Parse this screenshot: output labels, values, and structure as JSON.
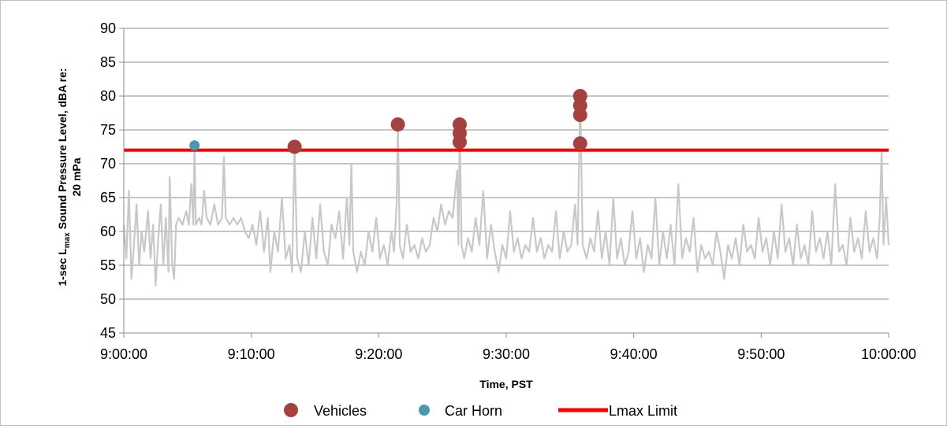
{
  "chart_data": {
    "type": "line",
    "title": "",
    "xlabel": "Time, PST",
    "ylabel_parts": {
      "prefix": "1-sec L",
      "subscript": "max",
      "suffix": " Sound Pressure Level, dBA re:",
      "line2": "20 mPa"
    },
    "x_unit": "minutes after 9:00:00",
    "xlim": [
      0,
      60
    ],
    "ylim": [
      45,
      90
    ],
    "yticks": [
      45,
      50,
      55,
      60,
      65,
      70,
      75,
      80,
      85,
      90
    ],
    "xticks": [
      0,
      10,
      20,
      30,
      40,
      50,
      60
    ],
    "xtick_labels": [
      "9:00:00",
      "9:10:00",
      "9:20:00",
      "9:30:00",
      "9:40:00",
      "9:50:00",
      "10:00:00"
    ],
    "grid": true,
    "legend_position": "bottom",
    "series": [
      {
        "name": "",
        "kind": "line",
        "color": "#c8c8c8",
        "keypoints": [
          [
            0.0,
            61
          ],
          [
            0.2,
            56
          ],
          [
            0.4,
            66
          ],
          [
            0.6,
            53
          ],
          [
            0.8,
            58
          ],
          [
            1.0,
            64
          ],
          [
            1.2,
            55
          ],
          [
            1.4,
            60
          ],
          [
            1.6,
            57
          ],
          [
            1.9,
            63
          ],
          [
            2.1,
            56
          ],
          [
            2.3,
            61
          ],
          [
            2.5,
            52
          ],
          [
            2.7,
            59
          ],
          [
            2.9,
            64
          ],
          [
            3.1,
            55
          ],
          [
            3.3,
            62
          ],
          [
            3.5,
            54
          ],
          [
            3.6,
            68
          ],
          [
            3.8,
            55
          ],
          [
            3.95,
            53
          ],
          [
            4.1,
            61
          ],
          [
            4.3,
            62
          ],
          [
            4.6,
            61
          ],
          [
            4.9,
            63
          ],
          [
            5.1,
            61
          ],
          [
            5.3,
            67
          ],
          [
            5.45,
            61
          ],
          [
            5.55,
            73
          ],
          [
            5.65,
            61
          ],
          [
            5.9,
            62
          ],
          [
            6.1,
            61
          ],
          [
            6.3,
            66
          ],
          [
            6.5,
            62
          ],
          [
            6.8,
            61
          ],
          [
            7.1,
            64
          ],
          [
            7.4,
            61
          ],
          [
            7.7,
            62
          ],
          [
            7.85,
            71
          ],
          [
            8.0,
            62
          ],
          [
            8.3,
            61
          ],
          [
            8.6,
            62
          ],
          [
            8.9,
            61
          ],
          [
            9.2,
            62
          ],
          [
            9.5,
            60
          ],
          [
            9.8,
            59
          ],
          [
            10.1,
            61
          ],
          [
            10.4,
            58
          ],
          [
            10.7,
            63
          ],
          [
            11.0,
            57
          ],
          [
            11.3,
            62
          ],
          [
            11.5,
            54
          ],
          [
            11.8,
            60
          ],
          [
            12.1,
            57
          ],
          [
            12.4,
            65
          ],
          [
            12.7,
            56
          ],
          [
            13.0,
            58
          ],
          [
            13.2,
            54
          ],
          [
            13.4,
            72.5
          ],
          [
            13.6,
            56
          ],
          [
            13.9,
            54
          ],
          [
            14.2,
            60
          ],
          [
            14.5,
            55
          ],
          [
            14.8,
            62
          ],
          [
            15.1,
            56
          ],
          [
            15.4,
            64
          ],
          [
            15.7,
            57
          ],
          [
            16.0,
            55
          ],
          [
            16.3,
            61
          ],
          [
            16.6,
            59
          ],
          [
            16.9,
            63
          ],
          [
            17.2,
            56
          ],
          [
            17.5,
            65
          ],
          [
            17.7,
            58
          ],
          [
            17.85,
            70
          ],
          [
            18.0,
            57
          ],
          [
            18.3,
            54
          ],
          [
            18.6,
            57
          ],
          [
            18.9,
            55
          ],
          [
            19.2,
            60
          ],
          [
            19.5,
            57
          ],
          [
            19.8,
            62
          ],
          [
            20.1,
            56
          ],
          [
            20.4,
            58
          ],
          [
            20.7,
            55
          ],
          [
            21.0,
            60
          ],
          [
            21.2,
            57
          ],
          [
            21.4,
            64
          ],
          [
            21.5,
            76
          ],
          [
            21.65,
            58
          ],
          [
            21.9,
            56
          ],
          [
            22.2,
            61
          ],
          [
            22.5,
            57
          ],
          [
            22.8,
            58
          ],
          [
            23.1,
            56
          ],
          [
            23.4,
            59
          ],
          [
            23.7,
            57
          ],
          [
            24.0,
            58
          ],
          [
            24.3,
            62
          ],
          [
            24.6,
            60
          ],
          [
            24.9,
            64
          ],
          [
            25.2,
            61
          ],
          [
            25.5,
            63
          ],
          [
            25.8,
            62
          ],
          [
            26.0,
            66
          ],
          [
            26.15,
            69
          ],
          [
            26.25,
            58
          ],
          [
            26.35,
            76
          ],
          [
            26.5,
            58
          ],
          [
            26.7,
            56
          ],
          [
            27.0,
            59
          ],
          [
            27.3,
            57
          ],
          [
            27.6,
            62
          ],
          [
            27.9,
            58
          ],
          [
            28.2,
            66
          ],
          [
            28.5,
            56
          ],
          [
            28.8,
            61
          ],
          [
            29.1,
            57
          ],
          [
            29.4,
            54
          ],
          [
            29.7,
            58
          ],
          [
            30.0,
            56
          ],
          [
            30.3,
            63
          ],
          [
            30.6,
            57
          ],
          [
            30.9,
            59
          ],
          [
            31.2,
            56
          ],
          [
            31.5,
            58
          ],
          [
            31.8,
            57
          ],
          [
            32.1,
            62
          ],
          [
            32.4,
            57
          ],
          [
            32.7,
            59
          ],
          [
            33.0,
            56
          ],
          [
            33.3,
            58
          ],
          [
            33.6,
            57
          ],
          [
            33.9,
            63
          ],
          [
            34.2,
            56
          ],
          [
            34.5,
            60
          ],
          [
            34.8,
            57
          ],
          [
            35.1,
            58
          ],
          [
            35.4,
            64
          ],
          [
            35.6,
            58
          ],
          [
            35.8,
            80
          ],
          [
            36.0,
            58
          ],
          [
            36.3,
            56
          ],
          [
            36.6,
            59
          ],
          [
            36.9,
            57
          ],
          [
            37.2,
            63
          ],
          [
            37.5,
            56
          ],
          [
            37.8,
            60
          ],
          [
            38.1,
            55
          ],
          [
            38.4,
            65
          ],
          [
            38.7,
            56
          ],
          [
            39.0,
            59
          ],
          [
            39.3,
            55
          ],
          [
            39.6,
            57
          ],
          [
            39.9,
            63
          ],
          [
            40.2,
            56
          ],
          [
            40.5,
            59
          ],
          [
            40.8,
            54
          ],
          [
            41.1,
            58
          ],
          [
            41.4,
            56
          ],
          [
            41.7,
            65
          ],
          [
            42.0,
            55
          ],
          [
            42.3,
            60
          ],
          [
            42.6,
            56
          ],
          [
            42.9,
            61
          ],
          [
            43.2,
            55
          ],
          [
            43.5,
            67
          ],
          [
            43.8,
            56
          ],
          [
            44.1,
            59
          ],
          [
            44.4,
            57
          ],
          [
            44.7,
            62
          ],
          [
            45.0,
            54
          ],
          [
            45.3,
            58
          ],
          [
            45.6,
            56
          ],
          [
            45.9,
            57
          ],
          [
            46.2,
            55
          ],
          [
            46.5,
            60
          ],
          [
            46.8,
            57
          ],
          [
            47.1,
            53
          ],
          [
            47.4,
            58
          ],
          [
            47.7,
            56
          ],
          [
            48.0,
            59
          ],
          [
            48.3,
            55
          ],
          [
            48.6,
            61
          ],
          [
            48.9,
            57
          ],
          [
            49.2,
            58
          ],
          [
            49.5,
            56
          ],
          [
            49.8,
            62
          ],
          [
            50.1,
            57
          ],
          [
            50.4,
            59
          ],
          [
            50.7,
            55
          ],
          [
            51.0,
            60
          ],
          [
            51.3,
            56
          ],
          [
            51.6,
            64
          ],
          [
            51.9,
            57
          ],
          [
            52.2,
            59
          ],
          [
            52.5,
            55
          ],
          [
            52.8,
            61
          ],
          [
            53.1,
            56
          ],
          [
            53.4,
            58
          ],
          [
            53.7,
            55
          ],
          [
            54.0,
            63
          ],
          [
            54.3,
            57
          ],
          [
            54.6,
            59
          ],
          [
            54.9,
            56
          ],
          [
            55.2,
            60
          ],
          [
            55.5,
            55
          ],
          [
            55.8,
            67
          ],
          [
            56.1,
            57
          ],
          [
            56.4,
            58
          ],
          [
            56.7,
            55
          ],
          [
            57.0,
            62
          ],
          [
            57.3,
            57
          ],
          [
            57.6,
            59
          ],
          [
            57.9,
            56
          ],
          [
            58.2,
            63
          ],
          [
            58.5,
            57
          ],
          [
            58.8,
            59
          ],
          [
            59.1,
            56
          ],
          [
            59.3,
            62
          ],
          [
            59.45,
            72
          ],
          [
            59.6,
            58
          ],
          [
            59.8,
            65
          ],
          [
            60.0,
            58
          ]
        ]
      },
      {
        "name": "Vehicles",
        "kind": "markers",
        "color": "#a5413f",
        "points": [
          [
            13.4,
            72.5
          ],
          [
            21.5,
            75.8
          ],
          [
            26.35,
            73.2
          ],
          [
            26.35,
            74.5
          ],
          [
            26.35,
            75.8
          ],
          [
            35.8,
            73.0
          ],
          [
            35.8,
            77.2
          ],
          [
            35.8,
            78.6
          ],
          [
            35.8,
            80.0
          ]
        ]
      },
      {
        "name": "Car Horn",
        "kind": "markers",
        "color": "#4a99b0",
        "points": [
          [
            5.55,
            72.7
          ]
        ]
      },
      {
        "name": "Lmax Limit",
        "kind": "hline",
        "color": "#ff0000",
        "y": 72
      }
    ],
    "legend": [
      {
        "label": "Vehicles",
        "symbol": "circle",
        "color": "#a5413f"
      },
      {
        "label": "Car Horn",
        "symbol": "circle",
        "color": "#4a99b0"
      },
      {
        "label": "Lmax Limit",
        "symbol": "line",
        "color": "#ff0000"
      }
    ]
  }
}
